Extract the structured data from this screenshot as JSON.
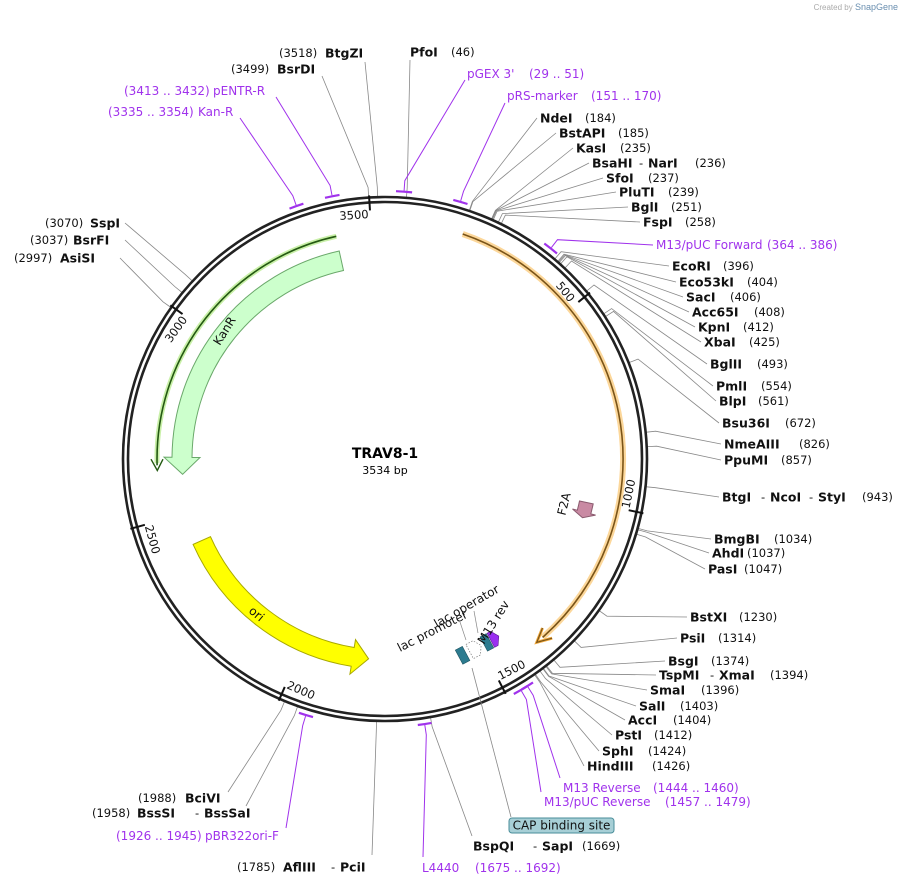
{
  "brand": {
    "created_by": "Created by",
    "name": "SnapGene"
  },
  "plasmid": {
    "name": "TRAV8-1",
    "length_label": "3534 bp",
    "length": 3534
  },
  "separator": "-",
  "ticks": [
    {
      "bp": 500,
      "label": "500"
    },
    {
      "bp": 1000,
      "label": "1000"
    },
    {
      "bp": 1500,
      "label": "1500"
    },
    {
      "bp": 2000,
      "label": "2000"
    },
    {
      "bp": 2500,
      "label": "2500"
    },
    {
      "bp": 3000,
      "label": "3000"
    },
    {
      "bp": 3500,
      "label": "3500"
    }
  ],
  "sites": [
    {
      "names": [
        "BtgZI"
      ],
      "pos": "(3518)",
      "bp": 3518
    },
    {
      "names": [
        "BsrDI"
      ],
      "pos": "(3499)",
      "bp": 3499
    },
    {
      "names": [
        "PfoI"
      ],
      "pos": "(46)",
      "bp": 46
    },
    {
      "names": [
        "NdeI"
      ],
      "pos": "(184)",
      "bp": 184
    },
    {
      "names": [
        "BstAPI"
      ],
      "pos": "(185)",
      "bp": 185
    },
    {
      "names": [
        "KasI"
      ],
      "pos": "(235)",
      "bp": 235
    },
    {
      "names": [
        "BsaHI",
        "NarI"
      ],
      "pos": "(236)",
      "bp": 236
    },
    {
      "names": [
        "SfoI"
      ],
      "pos": "(237)",
      "bp": 237
    },
    {
      "names": [
        "PluTI"
      ],
      "pos": "(239)",
      "bp": 239
    },
    {
      "names": [
        "BglI"
      ],
      "pos": "(251)",
      "bp": 251
    },
    {
      "names": [
        "FspI"
      ],
      "pos": "(258)",
      "bp": 258
    },
    {
      "names": [
        "EcoRI"
      ],
      "pos": "(396)",
      "bp": 396
    },
    {
      "names": [
        "Eco53kI"
      ],
      "pos": "(404)",
      "bp": 404
    },
    {
      "names": [
        "SacI"
      ],
      "pos": "(406)",
      "bp": 406
    },
    {
      "names": [
        "Acc65I"
      ],
      "pos": "(408)",
      "bp": 408
    },
    {
      "names": [
        "KpnI"
      ],
      "pos": "(412)",
      "bp": 412
    },
    {
      "names": [
        "XbaI"
      ],
      "pos": "(425)",
      "bp": 425
    },
    {
      "names": [
        "BglII"
      ],
      "pos": "(493)",
      "bp": 493
    },
    {
      "names": [
        "PmlI"
      ],
      "pos": "(554)",
      "bp": 554
    },
    {
      "names": [
        "BlpI"
      ],
      "pos": "(561)",
      "bp": 561
    },
    {
      "names": [
        "Bsu36I"
      ],
      "pos": "(672)",
      "bp": 672
    },
    {
      "names": [
        "NmeAIII"
      ],
      "pos": "(826)",
      "bp": 826
    },
    {
      "names": [
        "PpuMI"
      ],
      "pos": "(857)",
      "bp": 857
    },
    {
      "names": [
        "BtgI",
        "NcoI",
        "StyI"
      ],
      "pos": "(943)",
      "bp": 943
    },
    {
      "names": [
        "BmgBI"
      ],
      "pos": "(1034)",
      "bp": 1034
    },
    {
      "names": [
        "AhdI"
      ],
      "pos": "(1037)",
      "bp": 1037
    },
    {
      "names": [
        "PasI"
      ],
      "pos": "(1047)",
      "bp": 1047
    },
    {
      "names": [
        "BstXI"
      ],
      "pos": "(1230)",
      "bp": 1230
    },
    {
      "names": [
        "PsiI"
      ],
      "pos": "(1314)",
      "bp": 1314
    },
    {
      "names": [
        "BsgI"
      ],
      "pos": "(1374)",
      "bp": 1374
    },
    {
      "names": [
        "TspMI",
        "XmaI"
      ],
      "pos": "(1394)",
      "bp": 1394
    },
    {
      "names": [
        "SmaI"
      ],
      "pos": "(1396)",
      "bp": 1396
    },
    {
      "names": [
        "SalI"
      ],
      "pos": "(1403)",
      "bp": 1403
    },
    {
      "names": [
        "AccI"
      ],
      "pos": "(1404)",
      "bp": 1404
    },
    {
      "names": [
        "PstI"
      ],
      "pos": "(1412)",
      "bp": 1412
    },
    {
      "names": [
        "SphI"
      ],
      "pos": "(1424)",
      "bp": 1424
    },
    {
      "names": [
        "HindIII"
      ],
      "pos": "(1426)",
      "bp": 1426
    },
    {
      "names": [
        "BciVI"
      ],
      "pos": "(1988)",
      "bp": 1988
    },
    {
      "names": [
        "BssSI",
        "BssSaI"
      ],
      "pos": "(1958)",
      "bp": 1958
    },
    {
      "names": [
        "AflIII",
        "PciI"
      ],
      "pos": "(1785)",
      "bp": 1785
    },
    {
      "names": [
        "BspQI",
        "SapI"
      ],
      "pos": "(1669)",
      "bp": 1669
    },
    {
      "names": [
        "SspI"
      ],
      "pos": "(3070)",
      "bp": 3070
    },
    {
      "names": [
        "BsrFI"
      ],
      "pos": "(3037)",
      "bp": 3037
    },
    {
      "names": [
        "AsiSI"
      ],
      "pos": "(2997)",
      "bp": 2997
    }
  ],
  "primers": [
    {
      "name": "pGEX 3'",
      "range": "(29 .. 51)",
      "start": 29,
      "end": 51
    },
    {
      "name": "pRS-marker",
      "range": "(151 .. 170)",
      "start": 151,
      "end": 170
    },
    {
      "name": "M13/pUC Forward",
      "range": "(364 .. 386)",
      "start": 364,
      "end": 386
    },
    {
      "name": "M13 Reverse",
      "range": "(1444 .. 1460)",
      "start": 1444,
      "end": 1460
    },
    {
      "name": "M13/pUC Reverse",
      "range": "(1457 .. 1479)",
      "start": 1457,
      "end": 1479
    },
    {
      "name": "L4440",
      "range": "(1675 .. 1692)",
      "start": 1675,
      "end": 1692
    },
    {
      "name": "pBR322ori-F",
      "range": "(1926 .. 1945)",
      "start": 1926,
      "end": 1945
    },
    {
      "name": "Kan-R",
      "range": "(3335 .. 3354)",
      "start": 3335,
      "end": 3354
    },
    {
      "name": "pENTR-R",
      "range": "(3413 .. 3432)",
      "start": 3413,
      "end": 3432
    }
  ],
  "features": {
    "kanr": "KanR",
    "ori": "ori",
    "f2a": "F2A",
    "lac_promoter": "lac promoter",
    "lac_operator": "lac operator",
    "m13_rev": "M13 rev",
    "cap": "CAP binding site"
  },
  "colors": {
    "primer": "#a032ec",
    "kanr_fill": "#ccffcc",
    "kanr_stroke": "#2f7a2f",
    "ori_fill": "#ffff00",
    "cds": "#f5b84a",
    "f2a": "#c98aa3",
    "lac": "#2c7b8f",
    "cap_fill": "#a7cfd6"
  }
}
